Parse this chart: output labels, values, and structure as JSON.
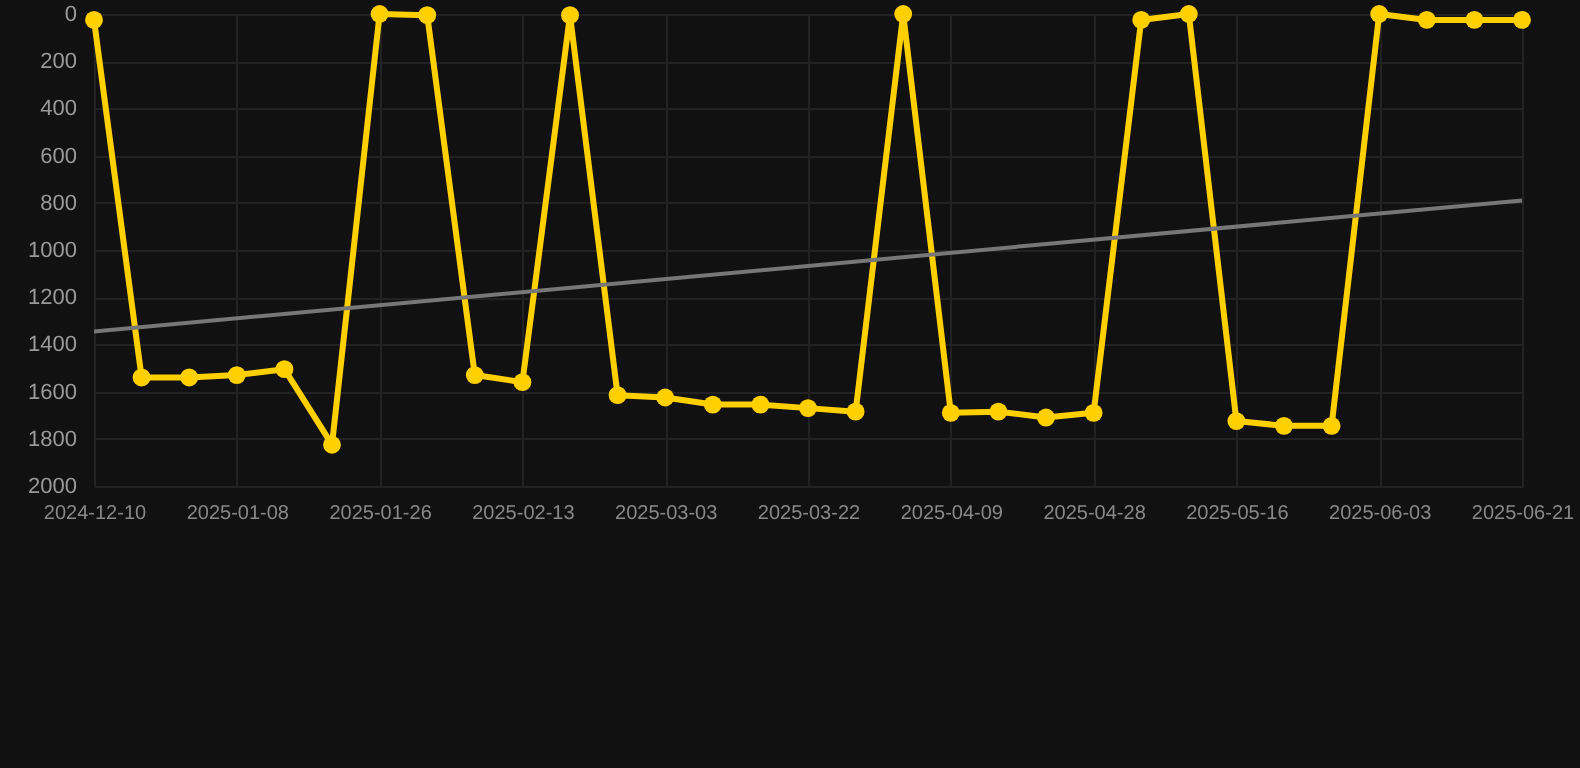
{
  "chart_data": {
    "type": "line",
    "categories": [
      "2024-12-10",
      null,
      null,
      "2025-01-08",
      null,
      null,
      "2025-01-26",
      null,
      null,
      "2025-02-13",
      null,
      null,
      "2025-03-03",
      null,
      null,
      "2025-03-22",
      null,
      null,
      "2025-04-09",
      null,
      null,
      "2025-04-28",
      null,
      null,
      "2025-05-16",
      null,
      null,
      "2025-06-03",
      null,
      null,
      "2025-06-21"
    ],
    "series": [
      {
        "color": "#ffd000",
        "marker": "circle",
        "values": [
          25,
          1540,
          1540,
          1530,
          1505,
          1825,
          0,
          5,
          1530,
          1560,
          5,
          1615,
          1625,
          1655,
          1655,
          1670,
          1685,
          0,
          1690,
          1685,
          1710,
          1690,
          25,
          0,
          1725,
          1745,
          1745,
          0,
          25,
          25,
          25
        ]
      },
      {
        "type": "line",
        "color": "#777777",
        "marker": "none",
        "values": [
          1345,
          null,
          null,
          null,
          null,
          null,
          null,
          null,
          null,
          null,
          null,
          null,
          null,
          null,
          null,
          null,
          null,
          null,
          null,
          null,
          null,
          null,
          null,
          null,
          null,
          null,
          null,
          null,
          null,
          null,
          790
        ]
      }
    ],
    "ylim": [
      2000,
      0
    ],
    "yticks": [
      0,
      200,
      400,
      600,
      800,
      1000,
      1200,
      1400,
      1600,
      1800,
      2000
    ],
    "grid": true,
    "line_style": "solid"
  }
}
